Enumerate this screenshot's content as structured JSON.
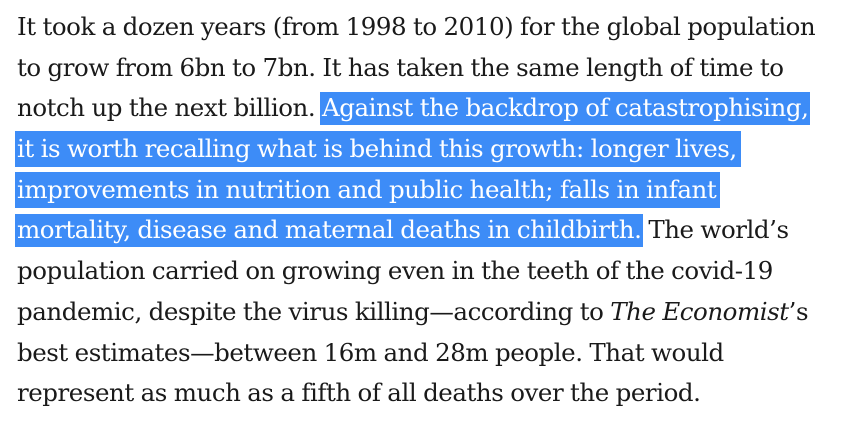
{
  "article": {
    "lines": [
      {
        "text": "It took a dozen years (from 1998 to 2010) for the global population"
      },
      {
        "text": "to grow from 6bn to 7bn. It has taken the same length of time to"
      },
      {
        "pre": "notch up the next billion. ",
        "highlight": "Against the backdrop of catastrophising,"
      },
      {
        "highlight": "it is worth recalling what is behind this growth: longer lives,"
      },
      {
        "highlight": "improvements in nutrition and public health; falls in infant"
      },
      {
        "highlight": "mortality, disease and maternal deaths in childbirth.",
        "post": " The world’s"
      },
      {
        "text": "population carried on growing even in the teeth of the covid-19"
      },
      {
        "pre": "pandemic, despite the virus killing—according to ",
        "em": "The Economist",
        "post": "’s"
      },
      {
        "text": "best estimates—between 16m and 28m people. That would"
      },
      {
        "text": "represent as much as a fifth of all deaths over the period."
      }
    ]
  },
  "colors": {
    "text": "#1a1a1a",
    "selection_background": "#3d8cf7",
    "selection_text": "#ffffff"
  }
}
